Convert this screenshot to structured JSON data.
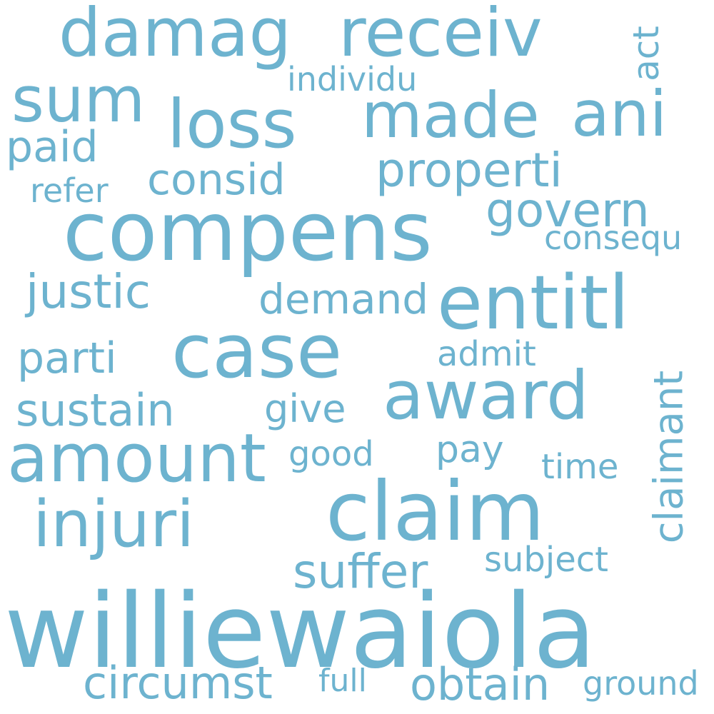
{
  "cloud": {
    "color": "#6db3cf",
    "background": "#ffffff",
    "words": [
      "williewaiola",
      "compens",
      "claim",
      "case",
      "entitl",
      "award",
      "amount",
      "damag",
      "receiv",
      "loss",
      "injuri",
      "made",
      "ani",
      "sum",
      "properti",
      "govern",
      "justic",
      "suffer",
      "sustain",
      "circumst",
      "obtain",
      "demand",
      "claimant",
      "consid",
      "paid",
      "parti",
      "subject",
      "give",
      "pay",
      "admit",
      "good",
      "time",
      "consequ",
      "individu",
      "refer",
      "act",
      "full",
      "ground"
    ]
  }
}
